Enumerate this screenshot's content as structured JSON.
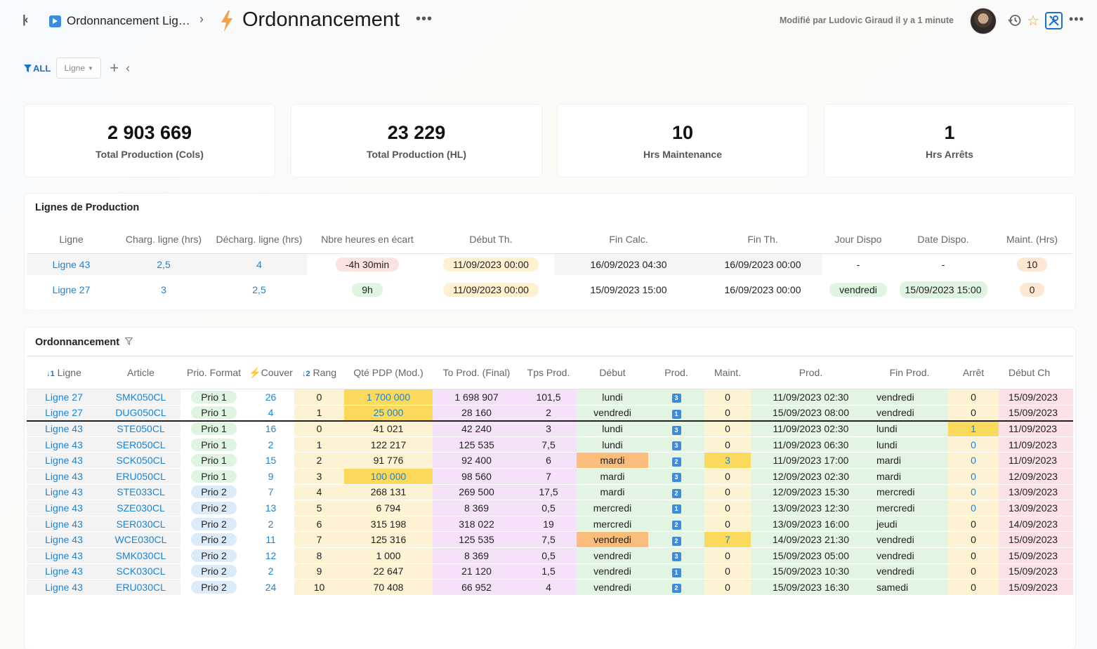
{
  "header": {
    "breadcrumb": "Ordonnancement Lignes",
    "title": "Ordonnancement",
    "modified": "Modifié par Ludovic Giraud il y a 1 minute"
  },
  "filters": {
    "all": "ALL",
    "ligne": "Ligne"
  },
  "kpis": [
    {
      "value": "2 903 669",
      "label": "Total Production (Cols)"
    },
    {
      "value": "23 229",
      "label": "Total Production (HL)"
    },
    {
      "value": "10",
      "label": "Hrs Maintenance"
    },
    {
      "value": "1",
      "label": "Hrs Arrêts"
    }
  ],
  "lignes": {
    "title": "Lignes de Production",
    "columns": [
      "Ligne",
      "Charg. ligne (hrs)",
      "Décharg. ligne (hrs)",
      "Nbre heures en écart",
      "Début Th.",
      "Fin Calc.",
      "Fin Th.",
      "Jour Dispo",
      "Date Dispo.",
      "Maint. (Hrs)"
    ],
    "rows": [
      [
        "Ligne 43",
        "2,5",
        "4",
        "-4h 30min",
        "11/09/2023 00:00",
        "16/09/2023 04:30",
        "16/09/2023 00:00",
        "-",
        "-",
        "10"
      ],
      [
        "Ligne 27",
        "3",
        "2,5",
        "9h",
        "11/09/2023 00:00",
        "15/09/2023 15:00",
        "16/09/2023 00:00",
        "vendredi",
        "15/09/2023 15:00",
        "0"
      ]
    ]
  },
  "ordo": {
    "title": "Ordonnancement",
    "columns": [
      "Ligne",
      "Article",
      "Prio. Format",
      "Couver",
      "Rang",
      "Qté PDP (Mod.)",
      "To Prod. (Final)",
      "Tps Prod.",
      "Début",
      "Prod.",
      "Maint.",
      "Prod.",
      "Fin Prod.",
      "Arrêt",
      "Début Ch"
    ],
    "sort1": "1",
    "sort2": "2",
    "rows": [
      [
        "Ligne 27",
        "SMK050CL",
        "Prio 1",
        "26",
        "0",
        "1 700 000",
        "1 698 907",
        "101,5",
        "lundi",
        "3",
        "0",
        "11/09/2023 02:30",
        "vendredi",
        "0",
        "15/09/2023"
      ],
      [
        "Ligne 27",
        "DUG050CL",
        "Prio 1",
        "4",
        "1",
        "25 000",
        "28 160",
        "2",
        "vendredi",
        "1",
        "0",
        "15/09/2023 08:00",
        "vendredi",
        "0",
        "15/09/2023"
      ],
      [
        "Ligne 43",
        "STE050CL",
        "Prio 1",
        "16",
        "0",
        "41 021",
        "42 240",
        "3",
        "lundi",
        "3",
        "0",
        "11/09/2023 02:30",
        "lundi",
        "1",
        "11/09/2023"
      ],
      [
        "Ligne 43",
        "SER050CL",
        "Prio 1",
        "2",
        "1",
        "122 217",
        "125 535",
        "7,5",
        "lundi",
        "3",
        "0",
        "11/09/2023 06:30",
        "lundi",
        "0",
        "11/09/2023"
      ],
      [
        "Ligne 43",
        "SCK050CL",
        "Prio 1",
        "15",
        "2",
        "91 776",
        "92 400",
        "6",
        "mardi",
        "2",
        "3",
        "11/09/2023 17:00",
        "mardi",
        "0",
        "11/09/2023"
      ],
      [
        "Ligne 43",
        "ERU050CL",
        "Prio 1",
        "9",
        "3",
        "100 000",
        "98 560",
        "7",
        "mardi",
        "3",
        "0",
        "12/09/2023 02:30",
        "mardi",
        "0",
        "12/09/2023"
      ],
      [
        "Ligne 43",
        "STE033CL",
        "Prio 2",
        "7",
        "4",
        "268 131",
        "269 500",
        "17,5",
        "mardi",
        "2",
        "0",
        "12/09/2023 15:30",
        "mercredi",
        "0",
        "13/09/2023"
      ],
      [
        "Ligne 43",
        "SZE030CL",
        "Prio 2",
        "13",
        "5",
        "6 794",
        "8 369",
        "0,5",
        "mercredi",
        "1",
        "0",
        "13/09/2023 12:30",
        "mercredi",
        "0",
        "13/09/2023"
      ],
      [
        "Ligne 43",
        "SER030CL",
        "Prio 2",
        "2",
        "6",
        "315 198",
        "318 022",
        "19",
        "mercredi",
        "2",
        "0",
        "13/09/2023 16:00",
        "jeudi",
        "0",
        "14/09/2023"
      ],
      [
        "Ligne 43",
        "WCE030CL",
        "Prio 2",
        "11",
        "7",
        "125 316",
        "125 535",
        "7,5",
        "vendredi",
        "2",
        "7",
        "14/09/2023 21:30",
        "vendredi",
        "0",
        "15/09/2023"
      ],
      [
        "Ligne 43",
        "SMK030CL",
        "Prio 2",
        "12",
        "8",
        "1 000",
        "8 369",
        "0,5",
        "vendredi",
        "3",
        "0",
        "15/09/2023 05:00",
        "vendredi",
        "0",
        "15/09/2023"
      ],
      [
        "Ligne 43",
        "SCK030CL",
        "Prio 2",
        "2",
        "9",
        "22 647",
        "21 120",
        "1,5",
        "vendredi",
        "1",
        "0",
        "15/09/2023 10:30",
        "vendredi",
        "0",
        "15/09/2023"
      ],
      [
        "Ligne 43",
        "ERU030CL",
        "Prio 2",
        "24",
        "10",
        "70 408",
        "66 952",
        "4",
        "vendredi",
        "2",
        "0",
        "15/09/2023 16:30",
        "samedi",
        "0",
        "15/09/2023"
      ]
    ]
  }
}
